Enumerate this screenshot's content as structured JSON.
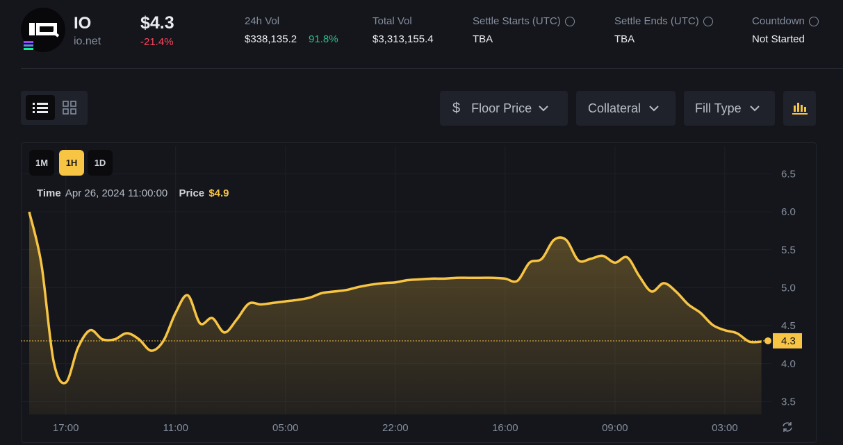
{
  "header": {
    "symbol": "IO",
    "name": "io.net",
    "price": "$4.3",
    "change": "-21.4%",
    "stats": [
      {
        "label": "24h Vol",
        "value": "$338,135.2",
        "extra": "91.8%"
      },
      {
        "label": "Total Vol",
        "value": "$3,313,155.4"
      },
      {
        "label": "Settle Starts (UTC)",
        "value": "TBA",
        "info": true
      },
      {
        "label": "Settle Ends (UTC)",
        "value": "TBA",
        "info": true
      },
      {
        "label": "Countdown",
        "value": "Not Started",
        "info": true
      }
    ]
  },
  "toolbar": {
    "filters": [
      "Floor Price",
      "Collateral",
      "Fill Type"
    ]
  },
  "intervals": {
    "options": [
      "1M",
      "1H",
      "1D"
    ],
    "active": "1H"
  },
  "tooltip": {
    "time_label": "Time",
    "time": "Apr 26, 2024 11:00:00",
    "price_label": "Price",
    "price": "$4.9"
  },
  "chart_data": {
    "type": "line",
    "color": "#f7c443",
    "grid": true,
    "categories": [
      null,
      null,
      null,
      "17:00",
      null,
      null,
      null,
      null,
      null,
      null,
      null,
      null,
      "11:00",
      null,
      null,
      null,
      null,
      null,
      null,
      null,
      null,
      "05:00",
      null,
      null,
      null,
      null,
      null,
      null,
      null,
      null,
      "22:00",
      null,
      null,
      null,
      null,
      null,
      null,
      null,
      null,
      "16:00",
      null,
      null,
      null,
      null,
      null,
      null,
      null,
      null,
      "09:00",
      null,
      null,
      null,
      null,
      null,
      null,
      null,
      null,
      "03:00",
      null,
      null,
      null
    ],
    "values": [
      6.0,
      5.31,
      4.03,
      3.75,
      4.21,
      4.44,
      4.32,
      4.32,
      4.4,
      4.32,
      4.17,
      4.3,
      4.67,
      4.9,
      4.53,
      4.6,
      4.41,
      4.58,
      4.79,
      4.78,
      4.8,
      4.82,
      4.84,
      4.87,
      4.93,
      4.95,
      4.97,
      5.01,
      5.04,
      5.06,
      5.07,
      5.1,
      5.11,
      5.12,
      5.12,
      5.13,
      5.13,
      5.13,
      5.13,
      5.12,
      5.09,
      5.33,
      5.38,
      5.63,
      5.63,
      5.36,
      5.38,
      5.42,
      5.33,
      5.4,
      5.15,
      4.95,
      5.06,
      4.95,
      4.78,
      4.67,
      4.51,
      4.44,
      4.4,
      4.29,
      4.29
    ],
    "last_value": 4.3,
    "ylim": [
      3.33,
      6.87
    ],
    "yticks": [
      3.5,
      {
        "value": 4,
        "label": "4.0"
      },
      4.5,
      {
        "value": 5,
        "label": "5.0"
      },
      5.5,
      {
        "value": 6,
        "label": "6.0"
      },
      6.5
    ]
  }
}
